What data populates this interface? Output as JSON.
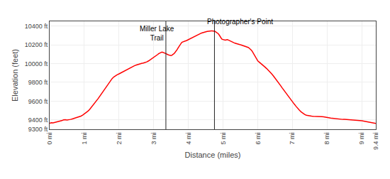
{
  "chart_data": {
    "type": "line",
    "xlabel": "Distance (miles)",
    "ylabel": "Elevation (feet)",
    "color": "#ff0000",
    "grid": true,
    "xlim": [
      0,
      9.4
    ],
    "ylim": [
      9300,
      10450
    ],
    "xticks": [
      {
        "value": 0,
        "label": "0 mi"
      },
      {
        "value": 1,
        "label": "1 mi"
      },
      {
        "value": 2,
        "label": "2 mi"
      },
      {
        "value": 3,
        "label": "3 mi"
      },
      {
        "value": 4,
        "label": "4 mi"
      },
      {
        "value": 5,
        "label": "5 mi"
      },
      {
        "value": 6,
        "label": "6 mi"
      },
      {
        "value": 7,
        "label": "7 mi"
      },
      {
        "value": 8,
        "label": "8 mi"
      },
      {
        "value": 9,
        "label": "9 mi"
      },
      {
        "value": 9.4,
        "label": "9.4 mi"
      }
    ],
    "yticks": [
      {
        "value": 9300,
        "label": "9300 ft"
      },
      {
        "value": 9400,
        "label": "9400 ft"
      },
      {
        "value": 9600,
        "label": "9600 ft"
      },
      {
        "value": 9800,
        "label": "9800 ft"
      },
      {
        "value": 10000,
        "label": "10000 ft"
      },
      {
        "value": 10200,
        "label": "10200 ft"
      },
      {
        "value": 10400,
        "label": "10400 ft"
      }
    ],
    "vlines": [
      {
        "x": 3.35,
        "color": "#222222"
      },
      {
        "x": 4.75,
        "color": "#222222"
      }
    ],
    "annotations": [
      {
        "text": "Miller Lake\nTrail",
        "x": 3.1,
        "y": 10215
      },
      {
        "text": "Photographer's Point",
        "x": 4.5,
        "y": 10390
      }
    ],
    "x": [
      0,
      0.05,
      0.1,
      0.15,
      0.2,
      0.25,
      0.3,
      0.35,
      0.4,
      0.45,
      0.5,
      0.55,
      0.6,
      0.65,
      0.7,
      0.75,
      0.8,
      0.85,
      0.9,
      0.95,
      1,
      1.05,
      1.1,
      1.15,
      1.2,
      1.25,
      1.3,
      1.35,
      1.4,
      1.45,
      1.5,
      1.55,
      1.6,
      1.65,
      1.7,
      1.75,
      1.8,
      1.85,
      1.9,
      1.95,
      2,
      2.05,
      2.1,
      2.15,
      2.2,
      2.25,
      2.3,
      2.35,
      2.4,
      2.45,
      2.5,
      2.55,
      2.6,
      2.65,
      2.7,
      2.75,
      2.8,
      2.85,
      2.9,
      2.95,
      3,
      3.05,
      3.1,
      3.12,
      3.14,
      3.16,
      3.18,
      3.2,
      3.22,
      3.24,
      3.26,
      3.28,
      3.3,
      3.32,
      3.34,
      3.36,
      3.38,
      3.4,
      3.42,
      3.44,
      3.46,
      3.48,
      3.5,
      3.52,
      3.54,
      3.56,
      3.58,
      3.6,
      3.62,
      3.64,
      3.66,
      3.68,
      3.7,
      3.72,
      3.74,
      3.76,
      3.78,
      3.8,
      3.82,
      3.84,
      3.86,
      3.88,
      3.9,
      3.92,
      3.94,
      3.96,
      3.98,
      4,
      4.02,
      4.04,
      4.06,
      4.08,
      4.1,
      4.12,
      4.14,
      4.16,
      4.18,
      4.2,
      4.22,
      4.24,
      4.26,
      4.28,
      4.3,
      4.32,
      4.34,
      4.36,
      4.38,
      4.4,
      4.42,
      4.44,
      4.46,
      4.48,
      4.5,
      4.52,
      4.54,
      4.56,
      4.58,
      4.6,
      4.62,
      4.64,
      4.66,
      4.68,
      4.7,
      4.72,
      4.74,
      4.76,
      4.78,
      4.8,
      4.82,
      4.84,
      4.86,
      4.88,
      4.9,
      4.92,
      4.94,
      4.96,
      4.98,
      5,
      5.02,
      5.04,
      5.06,
      5.08,
      5.1,
      5.12,
      5.14,
      5.16,
      5.18,
      5.2,
      5.22,
      5.24,
      5.26,
      5.28,
      5.3,
      5.32,
      5.34,
      5.36,
      5.38,
      5.4,
      5.42,
      5.44,
      5.46,
      5.48,
      5.5,
      5.52,
      5.54,
      5.56,
      5.58,
      5.6,
      5.62,
      5.64,
      5.66,
      5.68,
      5.7,
      5.72,
      5.74,
      5.76,
      5.78,
      5.8,
      5.82,
      5.84,
      5.86,
      5.88,
      5.9,
      5.92,
      5.94,
      5.96,
      5.98,
      6,
      6.05,
      6.1,
      6.15,
      6.2,
      6.25,
      6.3,
      6.35,
      6.4,
      6.45,
      6.5,
      6.55,
      6.6,
      6.65,
      6.7,
      6.75,
      6.8,
      6.85,
      6.9,
      6.95,
      7,
      7.05,
      7.1,
      7.15,
      7.2,
      7.25,
      7.3,
      7.35,
      7.4,
      7.45,
      7.5,
      7.55,
      7.6,
      7.65,
      7.7,
      7.75,
      7.8,
      7.85,
      7.9,
      7.95,
      8,
      8.05,
      8.1,
      8.15,
      8.2,
      8.25,
      8.3,
      8.35,
      8.4,
      8.45,
      8.5,
      8.55,
      8.6,
      8.65,
      8.7,
      8.75,
      8.8,
      8.85,
      8.9,
      8.95,
      9,
      9.05,
      9.1,
      9.15,
      9.2,
      9.22,
      9.24,
      9.26,
      9.28,
      9.3,
      9.32,
      9.34,
      9.36,
      9.38,
      9.4
    ],
    "values": [
      9365,
      9370,
      9368,
      9372,
      9378,
      9382,
      9388,
      9392,
      9400,
      9402,
      9398,
      9400,
      9405,
      9410,
      9415,
      9420,
      9425,
      9432,
      9440,
      9450,
      9462,
      9475,
      9492,
      9510,
      9532,
      9555,
      9578,
      9602,
      9628,
      9655,
      9682,
      9710,
      9738,
      9765,
      9792,
      9818,
      9840,
      9858,
      9872,
      9882,
      9890,
      9900,
      9910,
      9920,
      9932,
      9942,
      9952,
      9962,
      9970,
      9978,
      9985,
      9992,
      9998,
      10002,
      10005,
      10010,
      10018,
      10028,
      10040,
      10055,
      10068,
      10082,
      10092,
      10098,
      10105,
      10110,
      10115,
      10118,
      10120,
      10122,
      10120,
      10118,
      10115,
      10112,
      10108,
      10105,
      10100,
      10095,
      10092,
      10090,
      10088,
      10086,
      10085,
      10088,
      10092,
      10098,
      10105,
      10112,
      10120,
      10130,
      10140,
      10152,
      10165,
      10178,
      10192,
      10205,
      10215,
      10222,
      10228,
      10232,
      10235,
      10238,
      10240,
      10242,
      10244,
      10248,
      10252,
      10256,
      10260,
      10264,
      10268,
      10272,
      10276,
      10280,
      10284,
      10288,
      10292,
      10296,
      10300,
      10304,
      10308,
      10312,
      10316,
      10318,
      10320,
      10322,
      10325,
      10328,
      10330,
      10332,
      10334,
      10336,
      10338,
      10340,
      10342,
      10344,
      10345,
      10346,
      10347,
      10348,
      10348,
      10348,
      10348,
      10347,
      10346,
      10344,
      10340,
      10336,
      10332,
      10326,
      10318,
      10308,
      10295,
      10280,
      10268,
      10262,
      10258,
      10255,
      10252,
      10250,
      10250,
      10252,
      10255,
      10255,
      10252,
      10248,
      10242,
      10238,
      10236,
      10232,
      10228,
      10225,
      10222,
      10220,
      10218,
      10215,
      10213,
      10212,
      10210,
      10208,
      10205,
      10202,
      10200,
      10198,
      10196,
      10193,
      10190,
      10188,
      10185,
      10182,
      10180,
      10178,
      10175,
      10172,
      10168,
      10162,
      10155,
      10148,
      10140,
      10130,
      10118,
      10105,
      10092,
      10078,
      10065,
      10052,
      10040,
      10028,
      10012,
      9998,
      9982,
      9965,
      9948,
      9930,
      9910,
      9890,
      9868,
      9845,
      9820,
      9795,
      9768,
      9742,
      9716,
      9690,
      9665,
      9640,
      9616,
      9592,
      9568,
      9545,
      9522,
      9502,
      9485,
      9470,
      9458,
      9450,
      9445,
      9442,
      9440,
      9438,
      9438,
      9440,
      9440,
      9438,
      9435,
      9432,
      9428,
      9425,
      9422,
      9420,
      9418,
      9415,
      9412,
      9410,
      9408,
      9406,
      9405,
      9405,
      9404,
      9402,
      9400,
      9398,
      9395,
      9395,
      9395,
      9395,
      9393,
      9390,
      9387,
      9383,
      9380,
      9378,
      9375,
      9372,
      9370,
      9368,
      9366,
      9364,
      9363,
      9362,
      9362,
      9362
    ]
  }
}
